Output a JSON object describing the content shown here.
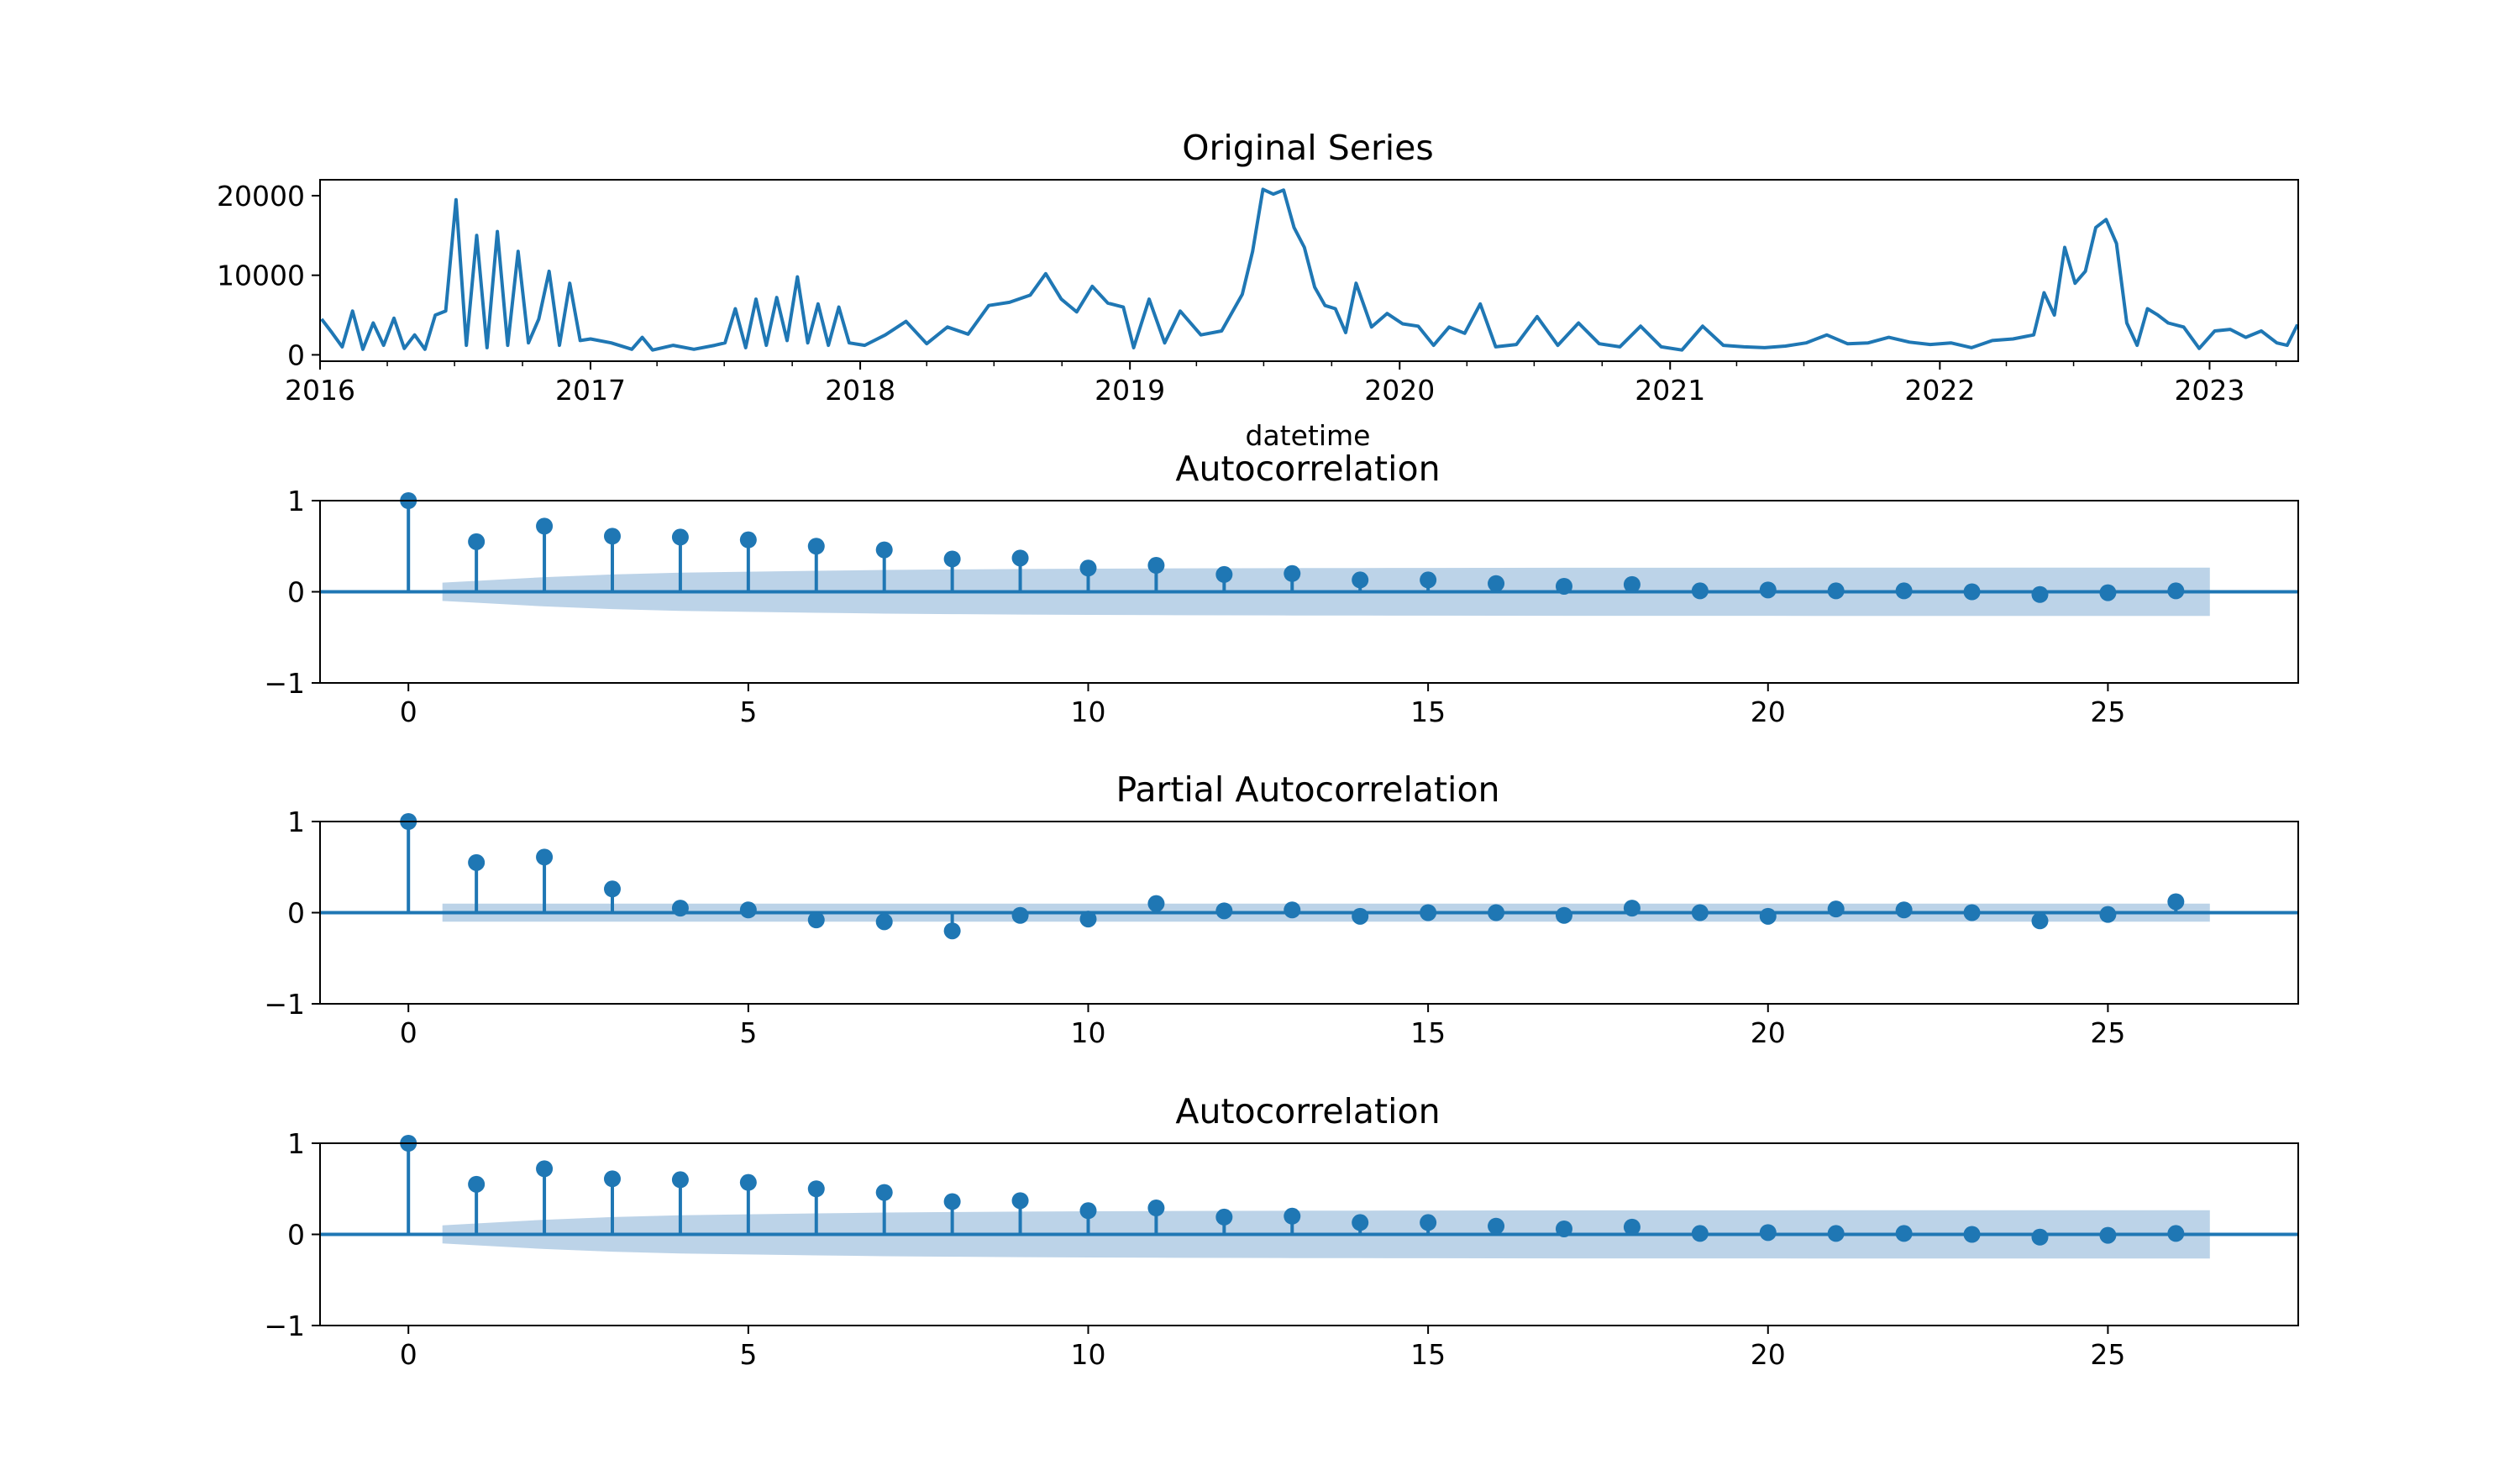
{
  "colors": {
    "series": "#1f77b4",
    "confidence_band": "#bcd3e8",
    "axes": "#000000",
    "background": "#ffffff"
  },
  "chart_data": [
    {
      "type": "line",
      "title": "Original Series",
      "xlabel": "datetime",
      "ylabel": "",
      "x_tick_labels": [
        "2016",
        "2017",
        "2018",
        "2019",
        "2020",
        "2021",
        "2022",
        "2023"
      ],
      "y_tick_labels": [
        "0",
        "10000",
        "20000"
      ],
      "xlim": [
        "2016-01-01",
        "2023-05-01"
      ],
      "ylim": [
        -800,
        22000
      ],
      "grid": false,
      "series": [
        {
          "x": [
            "2016-01-03",
            "2016-01-17",
            "2016-01-31",
            "2016-02-14",
            "2016-02-28",
            "2016-03-13",
            "2016-03-27",
            "2016-04-10",
            "2016-04-24",
            "2016-05-08",
            "2016-05-22",
            "2016-06-05",
            "2016-06-19",
            "2016-07-03",
            "2016-07-17",
            "2016-07-31",
            "2016-08-14",
            "2016-08-28",
            "2016-09-11",
            "2016-09-25",
            "2016-10-09",
            "2016-10-23",
            "2016-11-06",
            "2016-11-20",
            "2016-12-04",
            "2016-12-18",
            "2017-01-01",
            "2017-01-29",
            "2017-02-26",
            "2017-03-12",
            "2017-03-26",
            "2017-04-23",
            "2017-05-21",
            "2017-06-18",
            "2017-07-02",
            "2017-07-16",
            "2017-07-30",
            "2017-08-13",
            "2017-08-27",
            "2017-09-10",
            "2017-09-24",
            "2017-10-08",
            "2017-10-22",
            "2017-11-05",
            "2017-11-19",
            "2017-12-03",
            "2017-12-17",
            "2018-01-07",
            "2018-02-04",
            "2018-03-04",
            "2018-04-01",
            "2018-04-29",
            "2018-05-27",
            "2018-06-24",
            "2018-07-22",
            "2018-08-19",
            "2018-09-09",
            "2018-09-30",
            "2018-10-21",
            "2018-11-11",
            "2018-12-02",
            "2018-12-23",
            "2019-01-06",
            "2019-01-27",
            "2019-02-17",
            "2019-03-10",
            "2019-04-07",
            "2019-05-05",
            "2019-06-02",
            "2019-06-16",
            "2019-06-30",
            "2019-07-14",
            "2019-07-28",
            "2019-08-11",
            "2019-08-25",
            "2019-09-08",
            "2019-09-22",
            "2019-10-06",
            "2019-10-20",
            "2019-11-03",
            "2019-11-24",
            "2019-12-15",
            "2020-01-05",
            "2020-01-26",
            "2020-02-16",
            "2020-03-08",
            "2020-03-29",
            "2020-04-19",
            "2020-05-10",
            "2020-06-07",
            "2020-07-05",
            "2020-08-02",
            "2020-08-30",
            "2020-09-27",
            "2020-10-25",
            "2020-11-22",
            "2020-12-20",
            "2021-01-17",
            "2021-02-14",
            "2021-03-14",
            "2021-04-11",
            "2021-05-09",
            "2021-06-06",
            "2021-07-04",
            "2021-08-01",
            "2021-08-29",
            "2021-09-26",
            "2021-10-24",
            "2021-11-21",
            "2021-12-19",
            "2022-01-16",
            "2022-02-13",
            "2022-03-13",
            "2022-04-10",
            "2022-05-08",
            "2022-05-22",
            "2022-06-05",
            "2022-06-19",
            "2022-07-03",
            "2022-07-17",
            "2022-07-31",
            "2022-08-14",
            "2022-08-28",
            "2022-09-11",
            "2022-09-25",
            "2022-10-09",
            "2022-10-23",
            "2022-11-06",
            "2022-11-27",
            "2022-12-18",
            "2023-01-08",
            "2023-01-29",
            "2023-02-19",
            "2023-03-12",
            "2023-04-02",
            "2023-04-16",
            "2023-04-30"
          ],
          "values": [
            4500,
            2800,
            1000,
            5500,
            700,
            4000,
            1200,
            4600,
            800,
            2500,
            700,
            5000,
            5500,
            19500,
            1200,
            15000,
            900,
            15500,
            1200,
            13000,
            1500,
            4500,
            10500,
            1200,
            9000,
            1800,
            2000,
            1500,
            700,
            2200,
            600,
            1200,
            700,
            1200,
            1500,
            5800,
            900,
            7000,
            1200,
            7200,
            1800,
            9800,
            1500,
            6400,
            1200,
            6000,
            1500,
            1200,
            2500,
            4200,
            1400,
            3500,
            2600,
            6200,
            6600,
            7500,
            10200,
            7000,
            5400,
            8600,
            6500,
            6000,
            900,
            7000,
            1500,
            5500,
            2500,
            3000,
            7600,
            13000,
            20800,
            20200,
            20700,
            16000,
            13500,
            8500,
            6200,
            5800,
            2800,
            9000,
            3500,
            5200,
            3900,
            3600,
            1200,
            3500,
            2700,
            6400,
            1000,
            1300,
            4800,
            1200,
            4000,
            1400,
            1000,
            3600,
            1000,
            600,
            3600,
            1200,
            1000,
            900,
            1100,
            1500,
            2500,
            1400,
            1500,
            2200,
            1600,
            1300,
            1500,
            900,
            1800,
            2000,
            2500,
            7800,
            5000,
            13500,
            9000,
            10500,
            16000,
            17000,
            14000,
            4000,
            1200,
            5800,
            5000,
            4000,
            3500,
            800,
            3000,
            3200,
            2200,
            3000,
            1500,
            1200,
            3800
          ]
        }
      ]
    },
    {
      "type": "stem",
      "title": "Autocorrelation",
      "x_tick_labels": [
        "0",
        "5",
        "10",
        "15",
        "20",
        "25"
      ],
      "y_tick_labels": [
        "−1",
        "0",
        "1"
      ],
      "xlim": [
        -1.3,
        27.8
      ],
      "ylim": [
        -1,
        1
      ],
      "lags": [
        0,
        1,
        2,
        3,
        4,
        5,
        6,
        7,
        8,
        9,
        10,
        11,
        12,
        13,
        14,
        15,
        16,
        17,
        18,
        19,
        20,
        21,
        22,
        23,
        24,
        25,
        26
      ],
      "values": [
        1.0,
        0.55,
        0.72,
        0.61,
        0.6,
        0.57,
        0.5,
        0.46,
        0.36,
        0.37,
        0.26,
        0.29,
        0.19,
        0.2,
        0.13,
        0.13,
        0.09,
        0.06,
        0.08,
        0.01,
        0.02,
        0.01,
        0.01,
        0.0,
        -0.03,
        -0.01,
        0.01
      ],
      "confidence_band": {
        "lag_start": 0.5,
        "lag_end": 26.5,
        "halfwidth": [
          0.1,
          0.12,
          0.16,
          0.19,
          0.21,
          0.22,
          0.23,
          0.24,
          0.245,
          0.25,
          0.253,
          0.256,
          0.258,
          0.26,
          0.261,
          0.262,
          0.263,
          0.264,
          0.264,
          0.264,
          0.264,
          0.265,
          0.265,
          0.265,
          0.265,
          0.265,
          0.265
        ]
      }
    },
    {
      "type": "stem",
      "title": "Partial Autocorrelation",
      "x_tick_labels": [
        "0",
        "5",
        "10",
        "15",
        "20",
        "25"
      ],
      "y_tick_labels": [
        "−1",
        "0",
        "1"
      ],
      "xlim": [
        -1.3,
        27.8
      ],
      "ylim": [
        -1,
        1
      ],
      "lags": [
        0,
        1,
        2,
        3,
        4,
        5,
        6,
        7,
        8,
        9,
        10,
        11,
        12,
        13,
        14,
        15,
        16,
        17,
        18,
        19,
        20,
        21,
        22,
        23,
        24,
        25,
        26
      ],
      "values": [
        1.0,
        0.55,
        0.61,
        0.26,
        0.05,
        0.03,
        -0.08,
        -0.1,
        -0.2,
        -0.03,
        -0.07,
        0.1,
        0.02,
        0.03,
        -0.04,
        0.0,
        0.0,
        -0.03,
        0.05,
        0.0,
        -0.04,
        0.04,
        0.03,
        0.0,
        -0.09,
        -0.02,
        0.12
      ],
      "confidence_band": {
        "lag_start": 0.5,
        "lag_end": 26.5,
        "halfwidth": [
          0.1,
          0.1,
          0.1,
          0.1,
          0.1,
          0.1,
          0.1,
          0.1,
          0.1,
          0.1,
          0.1,
          0.1,
          0.1,
          0.1,
          0.1,
          0.1,
          0.1,
          0.1,
          0.1,
          0.1,
          0.1,
          0.1,
          0.1,
          0.1,
          0.1,
          0.1,
          0.1
        ]
      }
    },
    {
      "type": "stem",
      "title": "Autocorrelation",
      "x_tick_labels": [
        "0",
        "5",
        "10",
        "15",
        "20",
        "25"
      ],
      "y_tick_labels": [
        "−1",
        "0",
        "1"
      ],
      "xlim": [
        -1.3,
        27.8
      ],
      "ylim": [
        -1,
        1
      ],
      "lags": [
        0,
        1,
        2,
        3,
        4,
        5,
        6,
        7,
        8,
        9,
        10,
        11,
        12,
        13,
        14,
        15,
        16,
        17,
        18,
        19,
        20,
        21,
        22,
        23,
        24,
        25,
        26
      ],
      "values": [
        1.0,
        0.55,
        0.72,
        0.61,
        0.6,
        0.57,
        0.5,
        0.46,
        0.36,
        0.37,
        0.26,
        0.29,
        0.19,
        0.2,
        0.13,
        0.13,
        0.09,
        0.06,
        0.08,
        0.01,
        0.02,
        0.01,
        0.01,
        0.0,
        -0.03,
        -0.01,
        0.01
      ],
      "confidence_band": {
        "lag_start": 0.5,
        "lag_end": 26.5,
        "halfwidth": [
          0.1,
          0.12,
          0.16,
          0.19,
          0.21,
          0.22,
          0.23,
          0.24,
          0.245,
          0.25,
          0.253,
          0.256,
          0.258,
          0.26,
          0.261,
          0.262,
          0.263,
          0.264,
          0.264,
          0.264,
          0.264,
          0.265,
          0.265,
          0.265,
          0.265,
          0.265,
          0.265
        ]
      }
    }
  ]
}
